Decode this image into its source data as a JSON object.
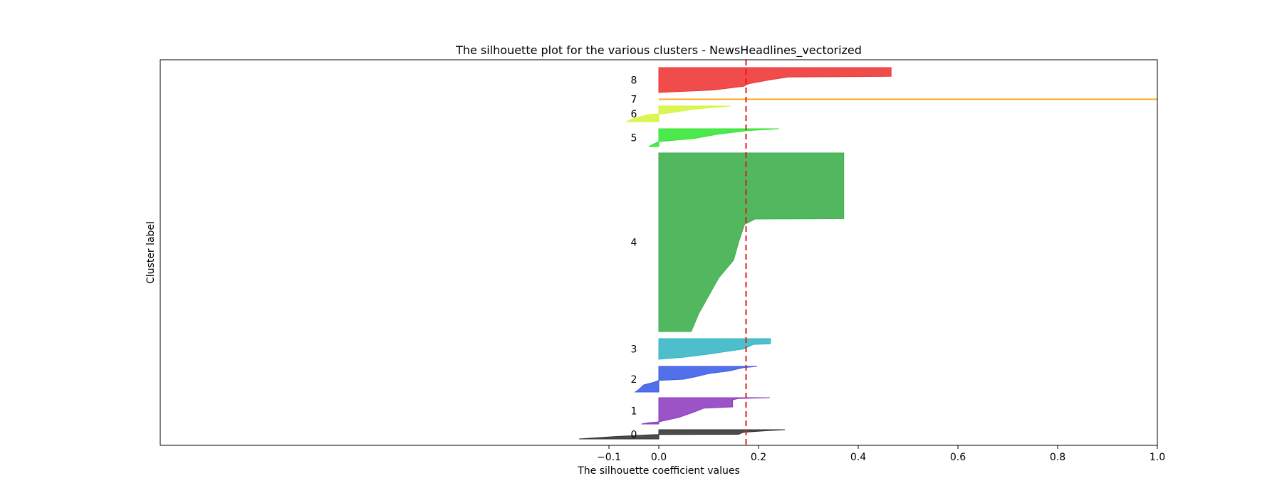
{
  "chart_data": {
    "type": "area",
    "title": "The silhouette plot for the various clusters - NewsHeadlines_vectorized",
    "xlabel": "The silhouette coefficient values",
    "ylabel": "Cluster label",
    "xlim": [
      -1,
      1
    ],
    "x_ticks": [
      "−0.1",
      "0.0",
      "0.2",
      "0.4",
      "0.6",
      "0.8",
      "1.0"
    ],
    "x_tick_values": [
      -0.1,
      0,
      0.2,
      0.4,
      0.6,
      0.8,
      1.0
    ],
    "average_silhouette": 0.175,
    "average_line_color": "#e41a1c",
    "grid": false,
    "clusters": [
      {
        "label": "0",
        "color": "#333333",
        "profile": [
          [
            0.0,
            0.253
          ],
          [
            0.1,
            0.22
          ],
          [
            0.28,
            0.17
          ],
          [
            0.5,
            0.16
          ],
          [
            0.52,
            0.0
          ],
          [
            0.56,
            -0.02
          ],
          [
            0.75,
            -0.09
          ],
          [
            1.0,
            -0.16
          ]
        ]
      },
      {
        "label": "1",
        "color": "#8e3bbf",
        "profile": [
          [
            0.0,
            0.223
          ],
          [
            0.03,
            0.16
          ],
          [
            0.08,
            0.148
          ],
          [
            0.35,
            0.148
          ],
          [
            0.4,
            0.09
          ],
          [
            0.55,
            0.07
          ],
          [
            0.75,
            0.04
          ],
          [
            0.92,
            0.0
          ],
          [
            0.95,
            -0.02
          ],
          [
            1.0,
            -0.035
          ]
        ]
      },
      {
        "label": "2",
        "color": "#3a5ce6",
        "profile": [
          [
            0.0,
            0.197
          ],
          [
            0.05,
            0.17
          ],
          [
            0.18,
            0.14
          ],
          [
            0.28,
            0.1
          ],
          [
            0.4,
            0.075
          ],
          [
            0.5,
            0.05
          ],
          [
            0.55,
            0.0
          ],
          [
            0.62,
            -0.01
          ],
          [
            0.72,
            -0.03
          ],
          [
            0.9,
            -0.04
          ],
          [
            1.0,
            -0.047
          ]
        ]
      },
      {
        "label": "3",
        "color": "#33b5c5",
        "profile": [
          [
            0.0,
            0.224
          ],
          [
            0.25,
            0.224
          ],
          [
            0.28,
            0.19
          ],
          [
            0.5,
            0.17
          ],
          [
            0.75,
            0.1
          ],
          [
            0.9,
            0.05
          ],
          [
            1.0,
            0.0
          ]
        ]
      },
      {
        "label": "4",
        "color": "#3aae4a",
        "profile": [
          [
            0.0,
            0.371
          ],
          [
            0.368,
            0.371
          ],
          [
            0.37,
            0.193
          ],
          [
            0.4,
            0.172
          ],
          [
            0.5,
            0.16
          ],
          [
            0.6,
            0.15
          ],
          [
            0.7,
            0.12
          ],
          [
            0.8,
            0.1
          ],
          [
            0.9,
            0.08
          ],
          [
            1.0,
            0.065
          ]
        ]
      },
      {
        "label": "5",
        "color": "#33e533",
        "profile": [
          [
            0.0,
            0.241
          ],
          [
            0.1,
            0.18
          ],
          [
            0.3,
            0.12
          ],
          [
            0.55,
            0.07
          ],
          [
            0.72,
            0.0
          ],
          [
            0.85,
            -0.01
          ],
          [
            1.0,
            -0.02
          ]
        ]
      },
      {
        "label": "6",
        "color": "#d5f53b",
        "profile": [
          [
            0.0,
            0.145
          ],
          [
            0.2,
            0.07
          ],
          [
            0.45,
            0.02
          ],
          [
            0.5,
            0.0
          ],
          [
            0.55,
            -0.02
          ],
          [
            0.8,
            -0.05
          ],
          [
            1.0,
            -0.065
          ]
        ]
      },
      {
        "label": "7",
        "color": "#ffa31a",
        "profile": [
          [
            0.0,
            1.0
          ],
          [
            1.0,
            1.0
          ]
        ]
      },
      {
        "label": "8",
        "color": "#ee3333",
        "profile": [
          [
            0.0,
            0.466
          ],
          [
            0.35,
            0.466
          ],
          [
            0.38,
            0.26
          ],
          [
            0.5,
            0.22
          ],
          [
            0.65,
            0.18
          ],
          [
            0.75,
            0.17
          ],
          [
            0.9,
            0.11
          ],
          [
            1.0,
            0.0
          ]
        ]
      }
    ]
  }
}
